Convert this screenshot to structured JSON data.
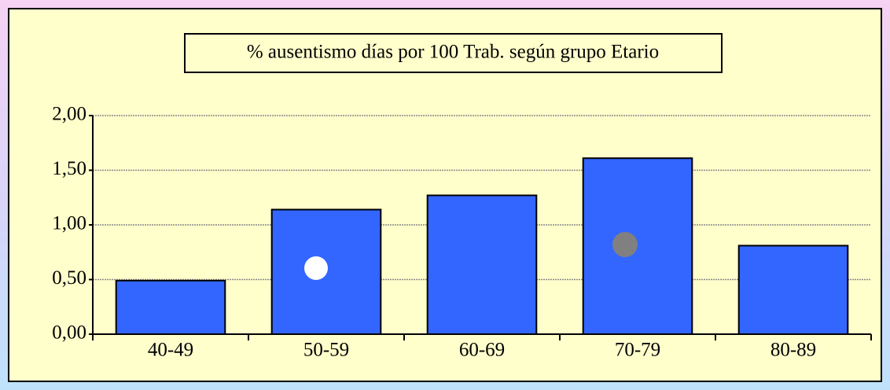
{
  "chart_data": {
    "type": "bar",
    "title": "% ausentismo días por 100 Trab. según grupo Etario",
    "categories": [
      "40-49",
      "50-59",
      "60-69",
      "70-79",
      "80-89"
    ],
    "values": [
      0.49,
      1.14,
      1.27,
      1.61,
      0.81
    ],
    "color": "#3366ff",
    "ylim": [
      0,
      2
    ],
    "yticks": [
      {
        "value": 0,
        "label": "0,00"
      },
      {
        "value": 0.5,
        "label": "0,50"
      },
      {
        "value": 1,
        "label": "1,00"
      },
      {
        "value": 1.5,
        "label": "1,50"
      },
      {
        "value": 2,
        "label": "2,00"
      }
    ],
    "grid": true
  }
}
